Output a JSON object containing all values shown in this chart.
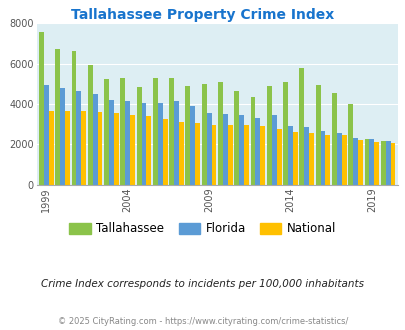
{
  "title": "Tallahassee Property Crime Index",
  "subtitle": "Crime Index corresponds to incidents per 100,000 inhabitants",
  "footer": "© 2025 CityRating.com - https://www.cityrating.com/crime-statistics/",
  "years": [
    1999,
    2000,
    2001,
    2002,
    2003,
    2004,
    2005,
    2006,
    2007,
    2008,
    2009,
    2010,
    2011,
    2012,
    2013,
    2014,
    2015,
    2016,
    2017,
    2018,
    2019,
    2020
  ],
  "tallahassee": [
    7550,
    6720,
    6600,
    5950,
    5250,
    5300,
    4850,
    5300,
    5300,
    4900,
    5000,
    5100,
    4650,
    4350,
    4900,
    5100,
    5800,
    4950,
    4550,
    4000,
    2250,
    2150
  ],
  "florida": [
    4950,
    4800,
    4650,
    4500,
    4200,
    4150,
    4050,
    4050,
    4150,
    3900,
    3550,
    3500,
    3450,
    3300,
    3450,
    2900,
    2850,
    2650,
    2550,
    2300,
    2250,
    2150
  ],
  "national": [
    3650,
    3650,
    3650,
    3600,
    3550,
    3450,
    3400,
    3250,
    3100,
    3050,
    2980,
    2950,
    2950,
    2920,
    2760,
    2600,
    2550,
    2480,
    2440,
    2200,
    2100,
    2050
  ],
  "bar_colors": {
    "tallahassee": "#8bc34a",
    "florida": "#5b9bd5",
    "national": "#ffc000"
  },
  "bg_color": "#ddeef3",
  "ylim": [
    0,
    8000
  ],
  "yticks": [
    0,
    2000,
    4000,
    6000,
    8000
  ],
  "xtick_years": [
    1999,
    2004,
    2009,
    2014,
    2019
  ],
  "title_color": "#1874cd",
  "subtitle_color": "#222222",
  "footer_color": "#888888",
  "grid_color": "#ffffff",
  "legend_labels": [
    "Tallahassee",
    "Florida",
    "National"
  ]
}
